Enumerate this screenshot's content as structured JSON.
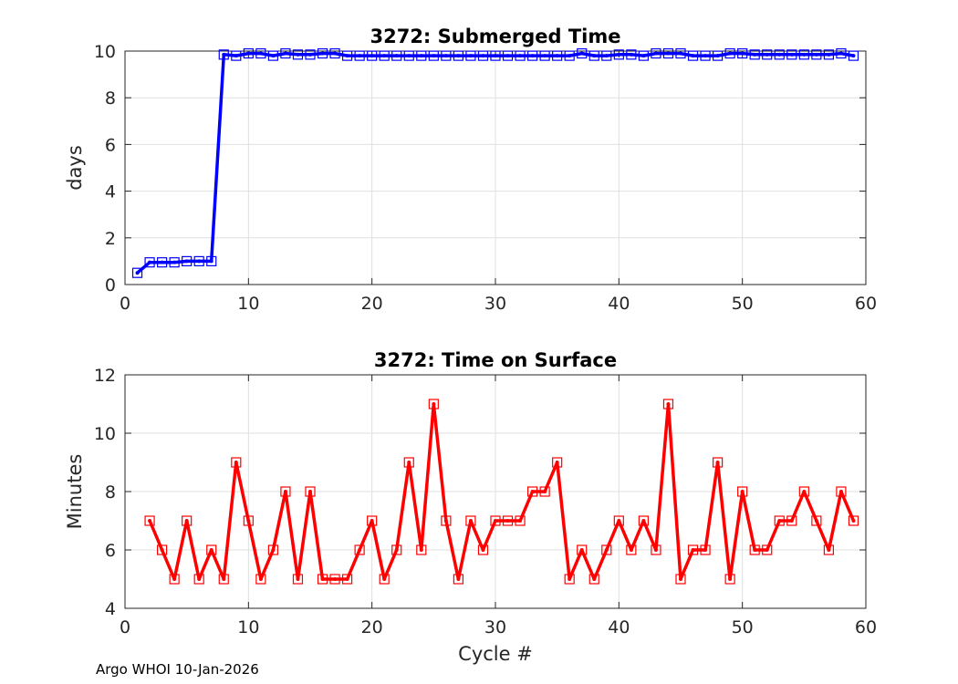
{
  "footer": {
    "text": "Argo WHOI 10-Jan-2026"
  },
  "chart_data": [
    {
      "type": "line",
      "title": "3272: Submerged Time",
      "xlabel": "",
      "ylabel": "days",
      "xlim": [
        0,
        60
      ],
      "ylim": [
        0,
        10
      ],
      "xticks": [
        0,
        10,
        20,
        30,
        40,
        50,
        60
      ],
      "yticks": [
        0,
        2,
        4,
        6,
        8,
        10
      ],
      "xtick_labels": [
        "0",
        "10",
        "20",
        "30",
        "40",
        "50",
        "60"
      ],
      "ytick_labels": [
        "0",
        "2",
        "4",
        "6",
        "8",
        "10"
      ],
      "grid": true,
      "series": [
        {
          "name": "Submerged Time",
          "color": "#0000ff",
          "marker": "square",
          "x": [
            1,
            2,
            3,
            4,
            5,
            6,
            7,
            8,
            9,
            10,
            11,
            12,
            13,
            14,
            15,
            16,
            17,
            18,
            19,
            20,
            21,
            22,
            23,
            24,
            25,
            26,
            27,
            28,
            29,
            30,
            31,
            32,
            33,
            34,
            35,
            36,
            37,
            38,
            39,
            40,
            41,
            42,
            43,
            44,
            45,
            46,
            47,
            48,
            49,
            50,
            51,
            52,
            53,
            54,
            55,
            56,
            57,
            58,
            59
          ],
          "values": [
            0.5,
            0.95,
            0.95,
            0.95,
            1.0,
            1.0,
            1.0,
            9.85,
            9.8,
            9.9,
            9.9,
            9.8,
            9.9,
            9.85,
            9.85,
            9.9,
            9.9,
            9.8,
            9.8,
            9.8,
            9.8,
            9.8,
            9.8,
            9.8,
            9.8,
            9.8,
            9.8,
            9.8,
            9.8,
            9.8,
            9.8,
            9.8,
            9.8,
            9.8,
            9.8,
            9.8,
            9.9,
            9.8,
            9.8,
            9.85,
            9.85,
            9.8,
            9.9,
            9.9,
            9.9,
            9.8,
            9.8,
            9.8,
            9.9,
            9.9,
            9.85,
            9.85,
            9.85,
            9.85,
            9.85,
            9.85,
            9.85,
            9.9,
            9.8
          ]
        }
      ]
    },
    {
      "type": "line",
      "title": "3272: Time on Surface",
      "xlabel": "Cycle #",
      "ylabel": "Minutes",
      "xlim": [
        0,
        60
      ],
      "ylim": [
        4,
        12
      ],
      "xticks": [
        0,
        10,
        20,
        30,
        40,
        50,
        60
      ],
      "yticks": [
        4,
        6,
        8,
        10,
        12
      ],
      "xtick_labels": [
        "0",
        "10",
        "20",
        "30",
        "40",
        "50",
        "60"
      ],
      "ytick_labels": [
        "4",
        "6",
        "8",
        "10",
        "12"
      ],
      "grid": true,
      "series": [
        {
          "name": "Time on Surface",
          "color": "#ff0000",
          "marker": "square",
          "x": [
            2,
            3,
            4,
            5,
            6,
            7,
            8,
            9,
            10,
            11,
            12,
            13,
            14,
            15,
            16,
            17,
            18,
            19,
            20,
            21,
            22,
            23,
            24,
            25,
            26,
            27,
            28,
            29,
            30,
            31,
            32,
            33,
            34,
            35,
            36,
            37,
            38,
            39,
            40,
            41,
            42,
            43,
            44,
            45,
            46,
            47,
            48,
            49,
            50,
            51,
            52,
            53,
            54,
            55,
            56,
            57,
            58,
            59
          ],
          "values": [
            7,
            6,
            5,
            7,
            5,
            6,
            5,
            9,
            7,
            5,
            6,
            8,
            5,
            8,
            5,
            5,
            5,
            6,
            7,
            5,
            6,
            9,
            6,
            11,
            7,
            5,
            7,
            6,
            7,
            7,
            7,
            8,
            8,
            9,
            5,
            6,
            5,
            6,
            7,
            6,
            7,
            6,
            11,
            5,
            6,
            6,
            9,
            5,
            8,
            6,
            6,
            7,
            7,
            8,
            7,
            6,
            8,
            7
          ]
        }
      ]
    }
  ]
}
